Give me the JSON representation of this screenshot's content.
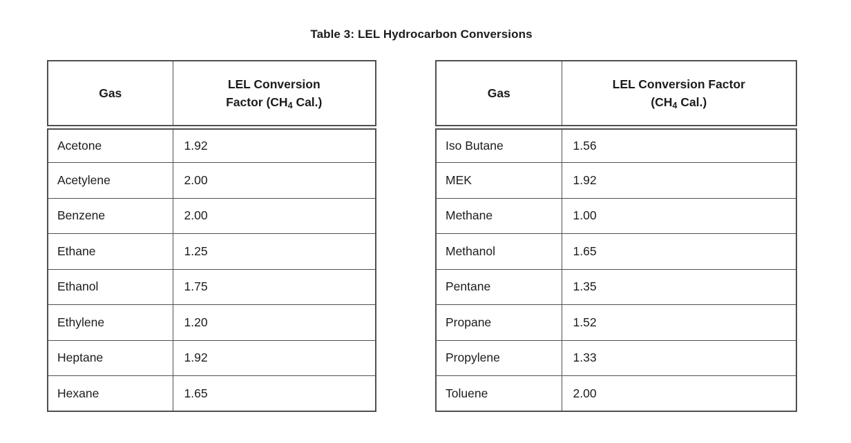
{
  "title": "Table 3: LEL Hydrocarbon Conversions",
  "colors": {
    "border": "#4e4e4e",
    "text": "#1c1c1c",
    "background": "#ffffff"
  },
  "tables": [
    {
      "id": "left",
      "header": {
        "gas_label": "Gas",
        "factor_line1": "LEL Conversion",
        "factor_line2_prefix": "Factor (CH",
        "factor_sub": "4",
        "factor_line2_suffix": " Cal.)"
      },
      "rows": [
        {
          "gas": "Acetone",
          "factor": "1.92"
        },
        {
          "gas": "Acetylene",
          "factor": "2.00"
        },
        {
          "gas": "Benzene",
          "factor": "2.00"
        },
        {
          "gas": "Ethane",
          "factor": "1.25"
        },
        {
          "gas": "Ethanol",
          "factor": "1.75"
        },
        {
          "gas": "Ethylene",
          "factor": "1.20"
        },
        {
          "gas": "Heptane",
          "factor": "1.92"
        },
        {
          "gas": "Hexane",
          "factor": "1.65"
        }
      ]
    },
    {
      "id": "right",
      "header": {
        "gas_label": "Gas",
        "factor_line1": "LEL Conversion Factor",
        "factor_line2_prefix": "(CH",
        "factor_sub": "4",
        "factor_line2_suffix": " Cal.)"
      },
      "rows": [
        {
          "gas": "Iso Butane",
          "factor": "1.56"
        },
        {
          "gas": "MEK",
          "factor": "1.92"
        },
        {
          "gas": "Methane",
          "factor": "1.00"
        },
        {
          "gas": "Methanol",
          "factor": "1.65"
        },
        {
          "gas": "Pentane",
          "factor": "1.35"
        },
        {
          "gas": "Propane",
          "factor": "1.52"
        },
        {
          "gas": "Propylene",
          "factor": "1.33"
        },
        {
          "gas": "Toluene",
          "factor": "2.00"
        }
      ]
    }
  ]
}
